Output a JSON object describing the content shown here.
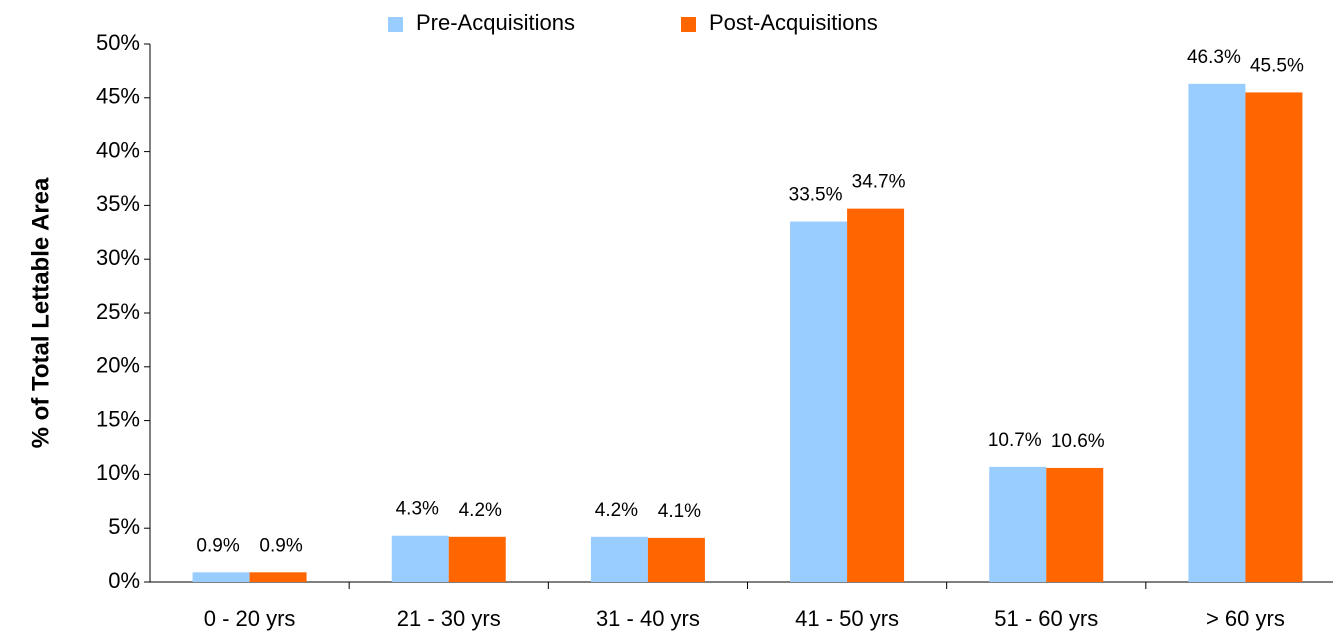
{
  "chart_data": {
    "type": "bar",
    "y_label": "% of Total Lettable Area",
    "categories": [
      "0 - 20 yrs",
      "21 - 30 yrs",
      "31 - 40 yrs",
      "41 - 50 yrs",
      "51 - 60 yrs",
      "> 60 yrs"
    ],
    "series": [
      {
        "name": "Pre-Acquisitions",
        "color": "#99ccff",
        "values": [
          0.9,
          4.3,
          4.2,
          33.5,
          10.7,
          46.3
        ],
        "value_labels": [
          "0.9%",
          "4.3%",
          "4.2%",
          "33.5%",
          "10.7%",
          "46.3%"
        ]
      },
      {
        "name": "Post-Acquisitions",
        "color": "#ff6600",
        "values": [
          0.9,
          4.2,
          4.1,
          34.7,
          10.6,
          45.5
        ],
        "value_labels": [
          "0.9%",
          "4.2%",
          "4.1%",
          "34.7%",
          "10.6%",
          "45.5%"
        ]
      }
    ],
    "ylim": [
      0,
      50
    ],
    "yticks": [
      {
        "value": 0,
        "label": "0%"
      },
      {
        "value": 5,
        "label": "5%"
      },
      {
        "value": 10,
        "label": "10%"
      },
      {
        "value": 15,
        "label": "15%"
      },
      {
        "value": 20,
        "label": "20%"
      },
      {
        "value": 25,
        "label": "25%"
      },
      {
        "value": 30,
        "label": "30%"
      },
      {
        "value": 35,
        "label": "35%"
      },
      {
        "value": 40,
        "label": "40%"
      },
      {
        "value": 45,
        "label": "45%"
      },
      {
        "value": 50,
        "label": "50%"
      }
    ],
    "grid": false,
    "legend": "top"
  }
}
